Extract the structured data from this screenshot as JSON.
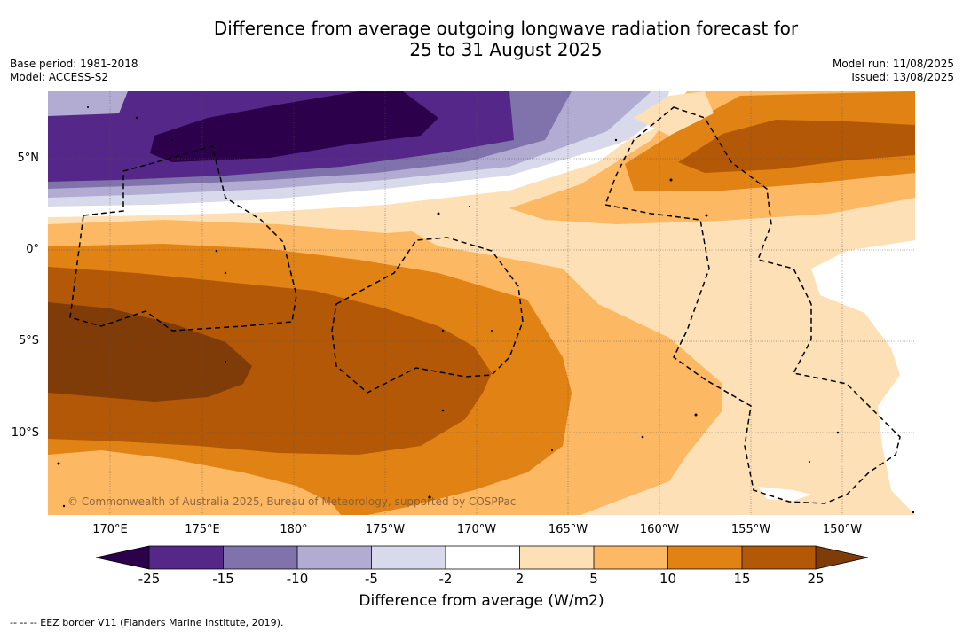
{
  "title_line1": "Difference from average outgoing longwave radiation forecast for",
  "title_line2": "25 to 31 August 2025",
  "base_period": "Base period: 1981-2018",
  "model": "Model: ACCESS-S2",
  "model_run": "Model run: 11/08/2025",
  "issued": "Issued: 13/08/2025",
  "lat_labels": [
    "5°N",
    "0°",
    "5°S",
    "10°S"
  ],
  "lon_labels": [
    "170°E",
    "175°E",
    "180°",
    "175°W",
    "170°W",
    "165°W",
    "160°W",
    "155°W",
    "150°W"
  ],
  "copyright": "© Commonwealth of Australia 2025, Bureau of Meteorology, supported by COSPPac",
  "colorbar": {
    "ticks": [
      "-25",
      "-15",
      "-10",
      "-5",
      "-2",
      "2",
      "5",
      "10",
      "15",
      "25"
    ],
    "label": "Difference from average (W/m2)",
    "colors": {
      "below_min": "#2d004b",
      "m25_m15": "#542788",
      "m15_m10": "#8073ac",
      "m10_m5": "#b2abd2",
      "m5_m2": "#d8daeb",
      "m2_2": "#ffffff",
      "p2_5": "#fee0b6",
      "p5_10": "#fdb863",
      "p10_15": "#e08214",
      "p15_25": "#b35806",
      "above_max": "#7f3b08"
    }
  },
  "footnote": "--  --  -- EEZ border V11 (Flanders Marine Institute, 2019)."
}
